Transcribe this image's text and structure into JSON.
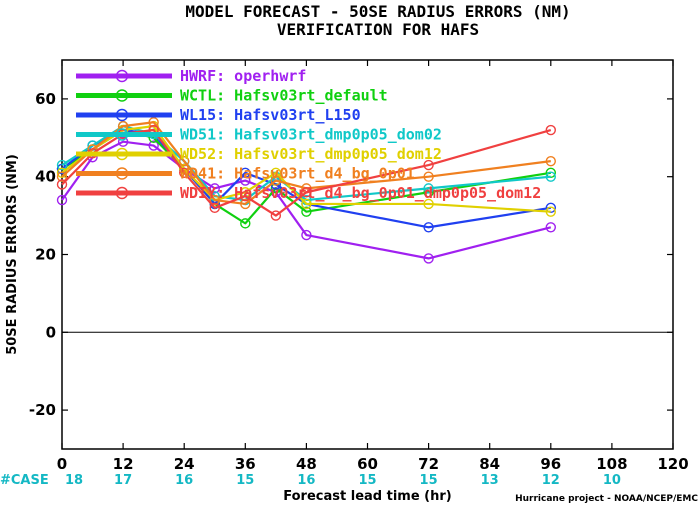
{
  "chart_data": {
    "type": "line",
    "title": "MODEL FORECAST - 50SE RADIUS ERRORS (NM)",
    "subtitle": "VERIFICATION FOR HAFS",
    "xlabel": "Forecast lead time (hr)",
    "ylabel": "50SE RADIUS ERRORS (NM)",
    "xlim": [
      0,
      120
    ],
    "ylim": [
      -30,
      70
    ],
    "xticks": [
      "0",
      "12",
      "24",
      "36",
      "48",
      "60",
      "72",
      "84",
      "96",
      "108",
      "120"
    ],
    "yticks": [
      "-20",
      "0",
      "20",
      "40",
      "60"
    ],
    "grid": false,
    "legend_position": "top-left",
    "case_label": "#CASE",
    "case_counts": [
      "18",
      "17",
      "16",
      "15",
      "16",
      "15",
      "15",
      "13",
      "12",
      "10"
    ],
    "credit": "Hurricane project - NOAA/NCEP/EMC",
    "series": [
      {
        "name": "HWRF: operhwrf",
        "color": "#a020f0",
        "x": [
          0,
          6,
          12,
          18,
          24,
          30,
          36,
          42,
          48,
          72,
          96
        ],
        "values": [
          34,
          45,
          49,
          48,
          42,
          37,
          39,
          36,
          25,
          19,
          27
        ]
      },
      {
        "name": "WCTL: Hafsv03rt_default",
        "color": "#10d010",
        "x": [
          0,
          6,
          12,
          18,
          24,
          30,
          36,
          42,
          48,
          72,
          96
        ],
        "values": [
          42,
          47,
          52,
          50,
          42,
          33,
          28,
          37,
          31,
          36,
          41
        ]
      },
      {
        "name": "WL15: Hafsv03rt_L150",
        "color": "#2040f0",
        "x": [
          0,
          6,
          12,
          18,
          24,
          30,
          36,
          42,
          48,
          72,
          96
        ],
        "values": [
          42,
          48,
          52,
          51,
          42,
          33,
          41,
          38,
          33,
          27,
          32
        ]
      },
      {
        "name": "WD51: Hafsv03rt_dmp0p05_dom02",
        "color": "#10c8c8",
        "x": [
          0,
          6,
          12,
          18,
          24,
          30,
          36,
          42,
          48,
          72,
          96
        ],
        "values": [
          43,
          48,
          53,
          51,
          44,
          35,
          34,
          40,
          34,
          37,
          40
        ]
      },
      {
        "name": "WD52: Hafsv03rt_dmp0p05_dom12",
        "color": "#e0d000",
        "x": [
          0,
          6,
          12,
          18,
          24,
          30,
          36,
          42,
          48,
          72,
          96
        ],
        "values": [
          41,
          47,
          52,
          53,
          42,
          34,
          36,
          41,
          33,
          33,
          31
        ]
      },
      {
        "name": "WD41: Hafsv03rt_d4_bg_0p01",
        "color": "#f08020",
        "x": [
          0,
          6,
          12,
          18,
          24,
          30,
          36,
          42,
          48,
          72,
          96
        ],
        "values": [
          40,
          47,
          53,
          54,
          44,
          34,
          33,
          39,
          37,
          40,
          44
        ]
      },
      {
        "name": "WDIY: Hafsv03rt_d4_bg_0p01_dmp0p05_dom12",
        "color": "#f04040",
        "x": [
          0,
          6,
          12,
          18,
          24,
          30,
          36,
          42,
          48,
          72,
          96
        ],
        "values": [
          38,
          46,
          51,
          52,
          41,
          32,
          35,
          30,
          36,
          43,
          52
        ]
      }
    ]
  }
}
